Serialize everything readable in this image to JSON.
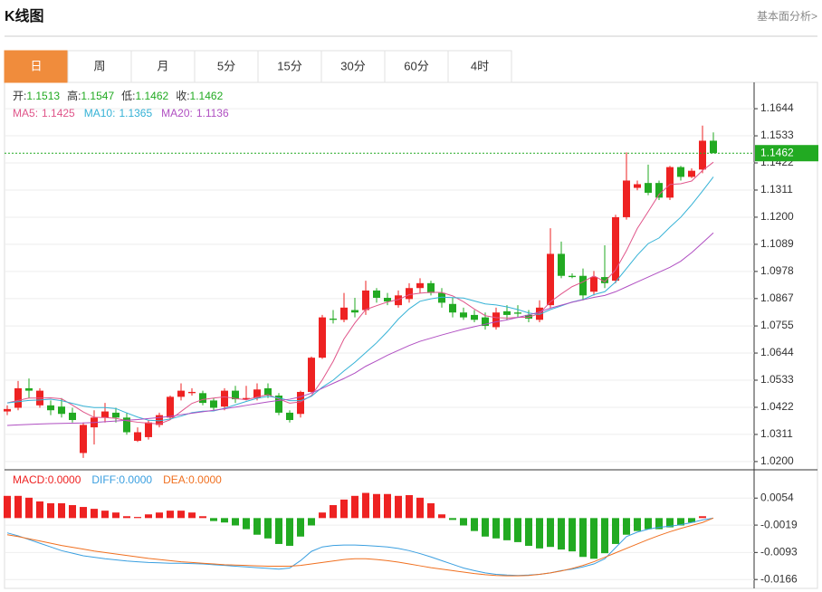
{
  "header": {
    "title": "K线图",
    "link": "基本面分析>"
  },
  "tabs": [
    "日",
    "周",
    "月",
    "5分",
    "15分",
    "30分",
    "60分",
    "4时"
  ],
  "chart_data": [
    {
      "type": "candlestick",
      "up_color": "#ee2222",
      "down_color": "#22aa22",
      "grid": true,
      "ylim": [
        1.017,
        1.1748
      ],
      "yticks": [
        1.1644,
        1.1533,
        1.1422,
        1.1311,
        {
          "value": 1.12,
          "label": "1.1200"
        },
        1.1089,
        1.0978,
        1.0867,
        1.0755,
        1.0644,
        1.0533,
        1.0422,
        1.0311,
        {
          "value": 1.02,
          "label": "1.0200"
        }
      ],
      "readout_separator": ":",
      "ohlc_labels": [
        "开",
        "高",
        "低",
        "收"
      ],
      "open": [
        1.0405,
        1.042,
        1.05,
        1.043,
        1.043,
        1.0425,
        1.04,
        1.0235,
        1.034,
        1.038,
        1.04,
        1.038,
        1.0285,
        1.03,
        1.035,
        1.038,
        1.0465,
        1.048,
        1.048,
        1.045,
        1.0425,
        1.049,
        1.0455,
        1.046,
        1.05,
        1.047,
        1.04,
        1.0395,
        1.0485,
        1.0625,
        1.0785,
        1.078,
        1.082,
        1.082,
        1.09,
        1.087,
        1.084,
        1.0865,
        1.091,
        1.093,
        1.089,
        1.0845,
        1.081,
        1.08,
        1.079,
        1.075,
        1.0815,
        1.081,
        1.08,
        1.078,
        1.084,
        1.105,
        1.096,
        1.096,
        1.0895,
        1.0955,
        1.094,
        1.12,
        1.132,
        1.134,
        1.134,
        1.128,
        1.1405,
        1.1365,
        1.1395,
        1.1513
      ],
      "high": [
        1.043,
        1.053,
        1.054,
        1.05,
        1.045,
        1.046,
        1.042,
        1.036,
        1.041,
        1.044,
        1.042,
        1.04,
        1.034,
        1.037,
        1.04,
        1.047,
        1.052,
        1.05,
        1.049,
        1.046,
        1.05,
        1.051,
        1.051,
        1.052,
        1.052,
        1.048,
        1.041,
        1.049,
        1.063,
        1.08,
        1.082,
        1.089,
        1.087,
        1.094,
        1.091,
        1.089,
        1.09,
        1.093,
        1.095,
        1.094,
        1.091,
        1.087,
        1.083,
        1.082,
        1.081,
        1.083,
        1.084,
        1.084,
        1.082,
        1.086,
        1.1155,
        1.11,
        1.097,
        1.099,
        1.098,
        1.1085,
        1.121,
        1.1465,
        1.135,
        1.1415,
        1.135,
        1.141,
        1.141,
        1.14,
        1.1575,
        1.1547
      ],
      "low": [
        1.039,
        1.041,
        1.046,
        1.042,
        1.039,
        1.038,
        1.036,
        1.0215,
        1.027,
        1.036,
        1.036,
        1.031,
        1.028,
        1.029,
        1.034,
        1.037,
        1.045,
        1.047,
        1.043,
        1.041,
        1.041,
        1.044,
        1.045,
        1.045,
        1.046,
        1.039,
        1.036,
        1.038,
        1.048,
        1.062,
        1.0765,
        1.077,
        1.079,
        1.08,
        1.085,
        1.084,
        1.083,
        1.085,
        1.089,
        1.088,
        1.083,
        1.079,
        1.078,
        1.077,
        1.074,
        1.074,
        1.078,
        1.079,
        1.077,
        1.077,
        1.083,
        1.095,
        1.095,
        1.086,
        1.088,
        1.091,
        1.093,
        1.119,
        1.131,
        1.129,
        1.127,
        1.127,
        1.135,
        1.136,
        1.138,
        1.1462
      ],
      "close": [
        1.0415,
        1.05,
        1.049,
        1.049,
        1.041,
        1.0395,
        1.037,
        1.035,
        1.038,
        1.0405,
        1.038,
        1.032,
        1.032,
        1.036,
        1.039,
        1.0465,
        1.049,
        1.0485,
        1.044,
        1.042,
        1.049,
        1.0455,
        1.046,
        1.0495,
        1.047,
        1.04,
        1.037,
        1.0485,
        1.0625,
        1.079,
        1.078,
        1.083,
        1.081,
        1.09,
        1.087,
        1.0855,
        1.088,
        1.091,
        1.093,
        1.089,
        1.085,
        1.081,
        1.079,
        1.078,
        1.0755,
        1.081,
        1.08,
        1.0805,
        1.0785,
        1.083,
        1.105,
        1.096,
        1.0955,
        1.088,
        1.0955,
        1.093,
        1.12,
        1.135,
        1.1335,
        1.13,
        1.128,
        1.1405,
        1.1365,
        1.139,
        1.1513,
        1.1462
      ],
      "series": [
        {
          "name": "MA5",
          "color": "#e0558a",
          "values": [
            1.044,
            1.045,
            1.046,
            1.046,
            1.0461,
            1.0457,
            1.0431,
            1.0403,
            1.0381,
            1.038,
            1.0377,
            1.0367,
            1.0361,
            1.0357,
            1.0354,
            1.0371,
            1.0405,
            1.0438,
            1.0454,
            1.046,
            1.0465,
            1.0458,
            1.0453,
            1.0464,
            1.0474,
            1.0456,
            1.0439,
            1.0444,
            1.047,
            1.0534,
            1.061,
            1.0702,
            1.0767,
            1.0822,
            1.0838,
            1.0853,
            1.0863,
            1.0883,
            1.0889,
            1.0893,
            1.0892,
            1.0878,
            1.0854,
            1.0824,
            1.0797,
            1.0789,
            1.0787,
            1.079,
            1.0791,
            1.0806,
            1.0854,
            1.0886,
            1.0916,
            1.0935,
            1.096,
            1.0936,
            1.0984,
            1.1063,
            1.1154,
            1.1223,
            1.1293,
            1.1334,
            1.1337,
            1.1348,
            1.1391,
            1.1425
          ]
        },
        {
          "name": "MA10",
          "color": "#35b2d6",
          "values": [
            1.044,
            1.0445,
            1.045,
            1.0452,
            1.0455,
            1.0449,
            1.0438,
            1.0427,
            1.0421,
            1.0421,
            1.0417,
            1.0399,
            1.0382,
            1.0369,
            1.0367,
            1.0374,
            1.0386,
            1.04,
            1.0406,
            1.0407,
            1.0418,
            1.0432,
            1.0446,
            1.0459,
            1.0467,
            1.0461,
            1.0449,
            1.0449,
            1.0467,
            1.0504,
            1.0533,
            1.0571,
            1.0606,
            1.0646,
            1.0686,
            1.0732,
            1.0783,
            1.0825,
            1.0856,
            1.0866,
            1.0873,
            1.0871,
            1.0869,
            1.0857,
            1.0845,
            1.0841,
            1.0833,
            1.0822,
            1.0808,
            1.0802,
            1.0822,
            1.0837,
            1.0853,
            1.0863,
            1.0883,
            1.0895,
            1.0935,
            1.099,
            1.1045,
            1.1092,
            1.1115,
            1.1159,
            1.12,
            1.1251,
            1.1307,
            1.1365
          ]
        },
        {
          "name": "MA20",
          "color": "#b04fc2",
          "values": [
            1.0348,
            1.035,
            1.0352,
            1.0354,
            1.0355,
            1.0356,
            1.0357,
            1.0358,
            1.036,
            1.0363,
            1.0366,
            1.0369,
            1.0372,
            1.0376,
            1.038,
            1.0385,
            1.0392,
            1.0398,
            1.0404,
            1.041,
            1.0416,
            1.0423,
            1.043,
            1.0437,
            1.0444,
            1.045,
            1.0455,
            1.0465,
            1.048,
            1.05,
            1.052,
            1.054,
            1.0562,
            1.059,
            1.0612,
            1.0635,
            1.0655,
            1.0675,
            1.0692,
            1.0705,
            1.0718,
            1.073,
            1.0742,
            1.0752,
            1.0762,
            1.0772,
            1.078,
            1.079,
            1.08,
            1.0812,
            1.0828,
            1.084,
            1.0852,
            1.0862,
            1.0872,
            1.088,
            1.0895,
            1.0915,
            1.0935,
            1.0955,
            1.0975,
            1.0995,
            1.102,
            1.1055,
            1.1095,
            1.1136
          ]
        }
      ]
    },
    {
      "type": "macd",
      "up_color": "#ee2222",
      "down_color": "#22aa22",
      "readout_separator": ":",
      "ylim": [
        -0.019,
        0.0128
      ],
      "yticks": [
        0.0054,
        -0.0019,
        -0.0093,
        -0.0166
      ],
      "series": [
        {
          "name": "MACD",
          "color": "#ee2222",
          "readout": "0.0000",
          "values": [
            0.006,
            0.006,
            0.0055,
            0.0045,
            0.004,
            0.004,
            0.0035,
            0.003,
            0.0025,
            0.002,
            0.0015,
            0.0005,
            0.0003,
            0.001,
            0.0015,
            0.002,
            0.002,
            0.0015,
            0.0005,
            -0.0008,
            -0.0012,
            -0.002,
            -0.003,
            -0.0045,
            -0.0055,
            -0.007,
            -0.0075,
            -0.005,
            -0.002,
            0.0015,
            0.0035,
            0.005,
            0.006,
            0.0068,
            0.0065,
            0.0065,
            0.006,
            0.0062,
            0.0055,
            0.004,
            0.001,
            -0.0005,
            -0.002,
            -0.0035,
            -0.005,
            -0.0055,
            -0.006,
            -0.0065,
            -0.0075,
            -0.0082,
            -0.0078,
            -0.0085,
            -0.009,
            -0.0105,
            -0.011,
            -0.0095,
            -0.007,
            -0.0045,
            -0.0035,
            -0.003,
            -0.003,
            -0.0025,
            -0.002,
            -0.0012,
            0.0005,
            0
          ]
        },
        {
          "name": "DIFF",
          "color": "#3a9fe0",
          "readout": "0.0000",
          "values": [
            -0.004,
            -0.0048,
            -0.0058,
            -0.0068,
            -0.0078,
            -0.0088,
            -0.0095,
            -0.0102,
            -0.0106,
            -0.011,
            -0.0113,
            -0.0116,
            -0.0118,
            -0.012,
            -0.0121,
            -0.0122,
            -0.0122,
            -0.0123,
            -0.0124,
            -0.0126,
            -0.0128,
            -0.013,
            -0.0132,
            -0.0134,
            -0.0136,
            -0.0138,
            -0.0135,
            -0.0115,
            -0.009,
            -0.0078,
            -0.0074,
            -0.0073,
            -0.0073,
            -0.0074,
            -0.0076,
            -0.0078,
            -0.0082,
            -0.0088,
            -0.0096,
            -0.0105,
            -0.0115,
            -0.0125,
            -0.0135,
            -0.0142,
            -0.0148,
            -0.0152,
            -0.0154,
            -0.0155,
            -0.0154,
            -0.0152,
            -0.0148,
            -0.0142,
            -0.0138,
            -0.0132,
            -0.0124,
            -0.011,
            -0.008,
            -0.005,
            -0.0038,
            -0.003,
            -0.0025,
            -0.0022,
            -0.0018,
            -0.0012,
            -0.0005,
            0
          ]
        },
        {
          "name": "DEA",
          "color": "#f07020",
          "readout": "0.0000",
          "values": [
            -0.0045,
            -0.005,
            -0.0056,
            -0.0062,
            -0.0068,
            -0.0074,
            -0.0079,
            -0.0084,
            -0.0089,
            -0.0093,
            -0.0097,
            -0.0101,
            -0.0105,
            -0.0109,
            -0.0112,
            -0.0115,
            -0.0118,
            -0.012,
            -0.0122,
            -0.0124,
            -0.0126,
            -0.0127,
            -0.0128,
            -0.0129,
            -0.013,
            -0.013,
            -0.013,
            -0.0128,
            -0.0124,
            -0.012,
            -0.0116,
            -0.0112,
            -0.011,
            -0.011,
            -0.0112,
            -0.0115,
            -0.0119,
            -0.0124,
            -0.0129,
            -0.0134,
            -0.0138,
            -0.0142,
            -0.0146,
            -0.015,
            -0.0153,
            -0.0155,
            -0.0156,
            -0.0156,
            -0.0155,
            -0.0152,
            -0.0148,
            -0.0143,
            -0.0136,
            -0.0128,
            -0.0118,
            -0.0106,
            -0.0094,
            -0.0082,
            -0.007,
            -0.0058,
            -0.0047,
            -0.0037,
            -0.0028,
            -0.002,
            -0.0012,
            0
          ]
        }
      ]
    }
  ]
}
